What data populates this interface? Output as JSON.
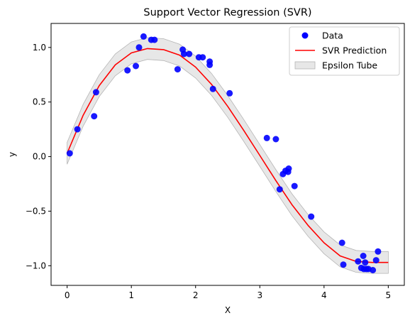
{
  "chart_data": {
    "type": "scatter",
    "title": "Support Vector Regression (SVR)",
    "xlabel": "X",
    "ylabel": "y",
    "xlim": [
      -0.25,
      5.25
    ],
    "ylim": [
      -1.18,
      1.22
    ],
    "xticks": [
      0,
      1,
      2,
      3,
      4,
      5
    ],
    "xtick_labels": [
      "0",
      "1",
      "2",
      "3",
      "4",
      "5"
    ],
    "yticks": [
      -1.0,
      -0.5,
      0.0,
      0.5,
      1.0
    ],
    "ytick_labels": [
      "−1.0",
      "−0.5",
      "0.0",
      "0.5",
      "1.0"
    ],
    "grid": false,
    "legend_position": "top-right",
    "series": [
      {
        "name": "Data",
        "kind": "scatter",
        "color": "#0000ff",
        "points": [
          [
            0.04,
            0.03
          ],
          [
            0.16,
            0.25
          ],
          [
            0.42,
            0.37
          ],
          [
            0.45,
            0.59
          ],
          [
            0.94,
            0.79
          ],
          [
            1.07,
            0.83
          ],
          [
            1.12,
            1.0
          ],
          [
            1.19,
            1.1
          ],
          [
            1.31,
            1.07
          ],
          [
            1.36,
            1.07
          ],
          [
            1.72,
            0.8
          ],
          [
            1.8,
            0.98
          ],
          [
            1.82,
            0.94
          ],
          [
            1.9,
            0.94
          ],
          [
            2.05,
            0.91
          ],
          [
            2.11,
            0.91
          ],
          [
            2.22,
            0.87
          ],
          [
            2.22,
            0.84
          ],
          [
            2.27,
            0.62
          ],
          [
            2.53,
            0.58
          ],
          [
            3.11,
            0.17
          ],
          [
            3.25,
            0.16
          ],
          [
            3.31,
            -0.3
          ],
          [
            3.36,
            -0.16
          ],
          [
            3.4,
            -0.13
          ],
          [
            3.44,
            -0.14
          ],
          [
            3.45,
            -0.11
          ],
          [
            3.54,
            -0.27
          ],
          [
            3.8,
            -0.55
          ],
          [
            4.28,
            -0.79
          ],
          [
            4.3,
            -0.99
          ],
          [
            4.53,
            -0.96
          ],
          [
            4.58,
            -1.02
          ],
          [
            4.61,
            -0.91
          ],
          [
            4.62,
            -1.03
          ],
          [
            4.64,
            -0.97
          ],
          [
            4.66,
            -1.03
          ],
          [
            4.69,
            -1.03
          ],
          [
            4.76,
            -1.04
          ],
          [
            4.81,
            -0.95
          ],
          [
            4.84,
            -0.87
          ]
        ]
      },
      {
        "name": "SVR Prediction",
        "kind": "line",
        "color": "#ff0000",
        "x": [
          0.0,
          0.25,
          0.5,
          0.75,
          1.0,
          1.25,
          1.5,
          1.75,
          2.0,
          2.25,
          2.5,
          2.75,
          3.0,
          3.25,
          3.5,
          3.75,
          4.0,
          4.25,
          4.5,
          4.75,
          5.0
        ],
        "y": [
          0.03,
          0.38,
          0.65,
          0.84,
          0.95,
          0.99,
          0.98,
          0.93,
          0.82,
          0.66,
          0.46,
          0.24,
          0.01,
          -0.22,
          -0.44,
          -0.63,
          -0.79,
          -0.91,
          -0.96,
          -0.97,
          -0.97
        ]
      },
      {
        "name": "Epsilon Tube",
        "kind": "band",
        "color": "#d3d3d3",
        "epsilon": 0.1
      }
    ]
  }
}
